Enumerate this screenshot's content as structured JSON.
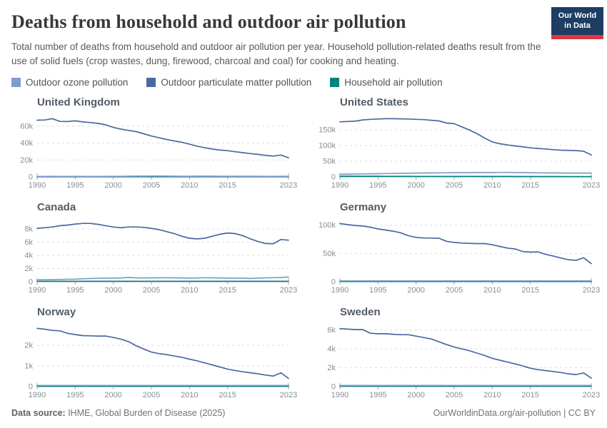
{
  "header": {
    "title": "Deaths from household and outdoor air pollution",
    "subtitle": "Total number of deaths from household and outdoor air pollution per year. Household pollution-related deaths result from the use of solid fuels (crop wastes, dung, firewood, charcoal and coal) for cooking and heating.",
    "logo": {
      "line1": "Our World",
      "line2": "in Data",
      "bg": "#1d3d63",
      "accent": "#dc3748"
    }
  },
  "footer": {
    "source_label": "Data source:",
    "source_text": " IHME, Global Burden of Disease (2025)",
    "credit": "OurWorldinData.org/air-pollution | CC BY"
  },
  "chart_data": {
    "type": "line",
    "layout": "small-multiples 2x3",
    "unit": "deaths per year (series values stored in thousands)",
    "grid": "dashed horizontal gridlines, solid zero axis",
    "legend_position": "top",
    "x": [
      1990,
      1991,
      1992,
      1993,
      1994,
      1995,
      1996,
      1997,
      1998,
      1999,
      2000,
      2001,
      2002,
      2003,
      2004,
      2005,
      2006,
      2007,
      2008,
      2009,
      2010,
      2011,
      2012,
      2013,
      2014,
      2015,
      2016,
      2017,
      2018,
      2019,
      2020,
      2021,
      2022,
      2023
    ],
    "x_ticks": [
      1990,
      1995,
      2000,
      2005,
      2010,
      2015,
      2023
    ],
    "series_meta": [
      {
        "key": "ozone",
        "name": "Outdoor ozone pollution",
        "color": "#7f9cce"
      },
      {
        "key": "pm",
        "name": "Outdoor particulate matter pollution",
        "color": "#4a69a2"
      },
      {
        "key": "household",
        "name": "Household air pollution",
        "color": "#00847e"
      }
    ],
    "panels": [
      {
        "title": "United Kingdom",
        "ymax": 72.5,
        "yticks": [
          0,
          20,
          40,
          60
        ],
        "series": {
          "pm": [
            67,
            67.3,
            68.8,
            65.6,
            65.4,
            66.3,
            65,
            64.2,
            63.2,
            61.5,
            58.5,
            56.5,
            55,
            53.5,
            51,
            48.3,
            46.3,
            44.3,
            42.5,
            41,
            38.7,
            36.3,
            34.5,
            33,
            31.7,
            31,
            29.8,
            28.7,
            27.6,
            26.6,
            25.4,
            24.6,
            25.9,
            22.6
          ],
          "ozone": [
            0.6,
            0.6,
            0.65,
            0.6,
            0.62,
            0.68,
            0.62,
            0.62,
            0.62,
            0.66,
            0.66,
            0.7,
            0.85,
            1.05,
            0.95,
            1.05,
            1.1,
            0.95,
            0.85,
            0.8,
            0.78,
            0.82,
            0.88,
            0.82,
            0.72,
            0.72,
            0.76,
            0.72,
            0.76,
            0.72,
            0.62,
            0.66,
            0.72,
            0.66
          ],
          "household": 0.15
        }
      },
      {
        "title": "United States",
        "ymax": 196,
        "yticks": [
          0,
          50,
          100,
          150
        ],
        "series": {
          "pm": [
            176,
            177,
            178,
            182,
            184,
            185,
            186,
            186,
            185.5,
            185,
            184,
            183,
            181,
            179,
            172,
            170,
            160,
            150,
            138,
            124,
            112,
            106,
            102,
            99,
            96,
            93,
            91,
            89,
            87,
            85.5,
            84.5,
            84,
            82,
            70
          ],
          "ozone": [
            9,
            9,
            9.2,
            9.5,
            10,
            10.3,
            10.7,
            11,
            11.4,
            11.8,
            12.2,
            12.5,
            12.8,
            13,
            13.2,
            13.4,
            13.5,
            13.6,
            13.8,
            13.9,
            14,
            14.3,
            14.5,
            14.2,
            13.8,
            13.4,
            13,
            12.8,
            12.7,
            12.6,
            12.3,
            12.2,
            12.3,
            12.4
          ],
          "household": [
            2.2,
            2.2,
            2.1,
            2.1,
            2,
            2,
            1.9,
            1.9,
            1.8,
            1.8,
            1.7,
            1.7,
            1.6,
            1.6,
            1.5,
            1.5,
            1.5,
            1.4,
            1.4,
            1.4,
            1.3,
            1.3,
            1.3,
            1.2,
            1.2,
            1.2,
            1.2,
            1.1,
            1.1,
            1.1,
            1,
            1,
            1,
            1
          ]
        }
      },
      {
        "title": "Canada",
        "ymax": 9.3,
        "yticks": [
          0,
          2,
          4,
          6,
          8
        ],
        "series": {
          "pm": [
            8.1,
            8.2,
            8.3,
            8.5,
            8.6,
            8.75,
            8.85,
            8.85,
            8.7,
            8.5,
            8.3,
            8.2,
            8.3,
            8.3,
            8.25,
            8.1,
            7.9,
            7.6,
            7.3,
            6.9,
            6.6,
            6.5,
            6.6,
            6.9,
            7.2,
            7.4,
            7.3,
            7,
            6.5,
            6.1,
            5.8,
            5.75,
            6.4,
            6.3
          ],
          "ozone": [
            0.3,
            0.3,
            0.32,
            0.35,
            0.38,
            0.4,
            0.45,
            0.5,
            0.52,
            0.55,
            0.55,
            0.58,
            0.65,
            0.6,
            0.58,
            0.6,
            0.6,
            0.62,
            0.6,
            0.58,
            0.55,
            0.58,
            0.62,
            0.6,
            0.58,
            0.55,
            0.55,
            0.55,
            0.5,
            0.55,
            0.6,
            0.62,
            0.65,
            0.72
          ],
          "household": 0.08
        }
      },
      {
        "title": "Germany",
        "ymax": 108.5,
        "yticks": [
          0,
          50,
          100
        ],
        "series": {
          "pm": [
            103,
            101,
            99.5,
            98.5,
            96.5,
            93.5,
            91.5,
            89.5,
            86.5,
            81.5,
            78.5,
            77.5,
            77.3,
            77,
            71.5,
            69.5,
            68.5,
            68,
            67.5,
            67.5,
            65.5,
            62.5,
            59.5,
            58,
            53.5,
            52.5,
            52.8,
            48.5,
            45.5,
            42,
            39,
            38,
            42.5,
            32
          ],
          "ozone": 1.6,
          "household": 0.5
        }
      },
      {
        "title": "Norway",
        "ymax": 2.97,
        "yticks": [
          0,
          1,
          2
        ],
        "series": {
          "pm": [
            2.82,
            2.78,
            2.72,
            2.7,
            2.58,
            2.52,
            2.47,
            2.46,
            2.45,
            2.45,
            2.38,
            2.3,
            2.18,
            1.98,
            1.82,
            1.67,
            1.6,
            1.55,
            1.48,
            1.42,
            1.33,
            1.25,
            1.15,
            1.05,
            0.95,
            0.85,
            0.78,
            0.72,
            0.67,
            0.62,
            0.56,
            0.51,
            0.67,
            0.4
          ],
          "ozone": 0.06,
          "household": 0.02
        }
      },
      {
        "title": "Sweden",
        "ymax": 6.5,
        "yticks": [
          0,
          2,
          4,
          6
        ],
        "series": {
          "pm": [
            6.15,
            6.1,
            6.05,
            6.05,
            5.65,
            5.6,
            5.6,
            5.55,
            5.5,
            5.5,
            5.35,
            5.2,
            5.05,
            4.75,
            4.45,
            4.2,
            4,
            3.8,
            3.55,
            3.3,
            3,
            2.8,
            2.6,
            2.4,
            2.2,
            1.95,
            1.8,
            1.7,
            1.6,
            1.5,
            1.35,
            1.28,
            1.45,
            0.9
          ],
          "ozone": 0.12,
          "household": 0.05
        }
      }
    ]
  }
}
